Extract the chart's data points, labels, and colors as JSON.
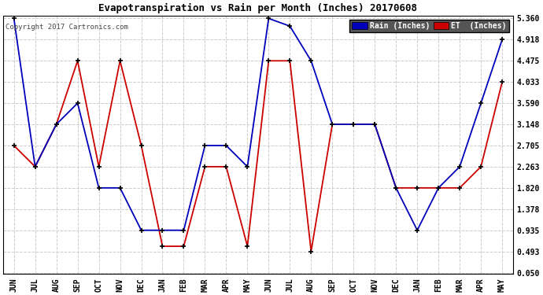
{
  "title": "Evapotranspiration vs Rain per Month (Inches) 20170608",
  "copyright": "Copyright 2017 Cartronics.com",
  "months": [
    "JUN",
    "JUL",
    "AUG",
    "SEP",
    "OCT",
    "NOV",
    "DEC",
    "JAN",
    "FEB",
    "MAR",
    "APR",
    "MAY",
    "JUN",
    "JUL",
    "AUG",
    "SEP",
    "OCT",
    "NOV",
    "DEC",
    "JAN",
    "FEB",
    "MAR",
    "APR",
    "MAY"
  ],
  "rain": [
    5.36,
    2.263,
    3.148,
    3.59,
    1.82,
    1.82,
    0.935,
    0.935,
    0.935,
    2.705,
    2.705,
    2.263,
    5.36,
    5.2,
    4.475,
    3.148,
    3.148,
    3.148,
    1.82,
    0.935,
    1.82,
    2.263,
    3.59,
    4.918
  ],
  "et": [
    2.705,
    2.263,
    3.148,
    4.475,
    2.263,
    4.475,
    2.705,
    0.6,
    0.6,
    2.263,
    2.263,
    0.6,
    4.475,
    4.475,
    0.493,
    3.148,
    3.148,
    3.148,
    1.82,
    1.82,
    1.82,
    1.82,
    2.263,
    4.033
  ],
  "yticks": [
    0.05,
    0.493,
    0.935,
    1.378,
    1.82,
    2.263,
    2.705,
    3.148,
    3.59,
    4.033,
    4.475,
    4.918,
    5.36
  ],
  "ylim_min": 0.02,
  "ylim_max": 5.42,
  "rain_color": "#0000bb",
  "et_color": "#cc0000",
  "bg_color": "#ffffff",
  "grid_color": "#cccccc",
  "marker_color": "#000000",
  "marker_size": 5,
  "line_width": 1.3,
  "legend_rain_bg": "#0000bb",
  "legend_et_bg": "#cc0000"
}
